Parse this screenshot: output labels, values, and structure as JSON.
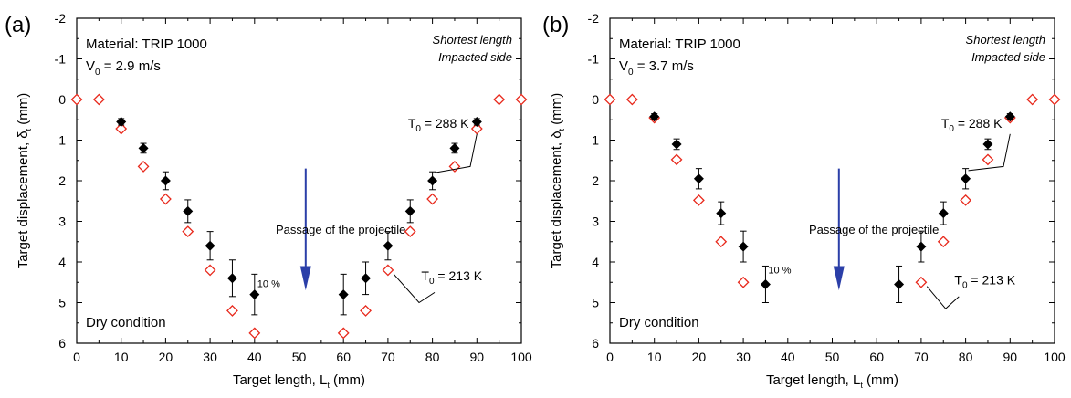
{
  "colors": {
    "plot_frame": "#000000",
    "filled_marker": "#000000",
    "open_marker": "#e8291c",
    "arrow": "#2b3fa8"
  },
  "chart_data": [
    {
      "type": "scatter",
      "panel_label": "(a)",
      "title": "",
      "xlabel": "Target length, L",
      "xlabel_sub": "t",
      "xlabel_units": "(mm)",
      "ylabel": "Target displacement, δ",
      "ylabel_sub": "t",
      "ylabel_units": "(mm)",
      "xlim": [
        0,
        100
      ],
      "ylim": [
        6,
        -2
      ],
      "y_inverted": true,
      "xticks": [
        "0",
        "10",
        "20",
        "30",
        "40",
        "50",
        "60",
        "70",
        "80",
        "90",
        "100"
      ],
      "yticks": [
        "-2",
        "-1",
        "0",
        "1",
        "2",
        "3",
        "4",
        "5",
        "6"
      ],
      "annotations": {
        "material": "Material: TRIP 1000",
        "velocity_main": "V",
        "velocity_sub": "0",
        "velocity_rest": " = 2.9 m/s",
        "corner1": "Shortest length",
        "corner2": "Impacted side",
        "dry": "Dry condition",
        "passage": "Passage of the projectile",
        "percent": "10 %",
        "t288_main": "T",
        "t288_sub": "0",
        "t288_rest": " = 288 K",
        "t213_main": "T",
        "t213_sub": "0",
        "t213_rest": " = 213 K"
      },
      "series": [
        {
          "marker": "filled-diamond",
          "label": "T0 = 288 K",
          "x": [
            10,
            15,
            20,
            25,
            30,
            35,
            40,
            60,
            65,
            70,
            75,
            80,
            85,
            90
          ],
          "y": [
            0.55,
            1.2,
            2.0,
            2.75,
            3.6,
            4.4,
            4.8,
            4.8,
            4.4,
            3.6,
            2.75,
            2.0,
            1.2,
            0.55
          ],
          "err": [
            0.08,
            0.12,
            0.22,
            0.28,
            0.35,
            0.45,
            0.5,
            0.5,
            0.4,
            0.35,
            0.28,
            0.22,
            0.12,
            0.08
          ]
        },
        {
          "marker": "open-diamond",
          "label": "T0 = 213 K",
          "x": [
            0,
            5,
            10,
            15,
            20,
            25,
            30,
            35,
            40,
            60,
            65,
            70,
            75,
            80,
            85,
            90,
            95,
            100
          ],
          "y": [
            0,
            0,
            0.72,
            1.65,
            2.45,
            3.25,
            4.2,
            5.2,
            5.75,
            5.75,
            5.2,
            4.2,
            3.25,
            2.45,
            1.65,
            0.72,
            0,
            0
          ]
        }
      ]
    },
    {
      "type": "scatter",
      "panel_label": "(b)",
      "title": "",
      "xlabel": "Target length, L",
      "xlabel_sub": "t",
      "xlabel_units": "(mm)",
      "ylabel": "Target displacement, δ",
      "ylabel_sub": "t",
      "ylabel_units": "(mm)",
      "xlim": [
        0,
        100
      ],
      "ylim": [
        6,
        -2
      ],
      "y_inverted": true,
      "xticks": [
        "0",
        "10",
        "20",
        "30",
        "40",
        "50",
        "60",
        "70",
        "80",
        "90",
        "100"
      ],
      "yticks": [
        "-2",
        "-1",
        "0",
        "1",
        "2",
        "3",
        "4",
        "5",
        "6"
      ],
      "annotations": {
        "material": "Material: TRIP 1000",
        "velocity_main": "V",
        "velocity_sub": "0",
        "velocity_rest": " = 3.7 m/s",
        "corner1": "Shortest length",
        "corner2": "Impacted side",
        "dry": "Dry condition",
        "passage": "Passage of the projectile",
        "percent": "10 %",
        "t288_main": "T",
        "t288_sub": "0",
        "t288_rest": " = 288 K",
        "t213_main": "T",
        "t213_sub": "0",
        "t213_rest": " = 213 K"
      },
      "series": [
        {
          "marker": "filled-diamond",
          "label": "T0 = 288 K",
          "x": [
            10,
            15,
            20,
            25,
            30,
            35,
            65,
            70,
            75,
            80,
            85,
            90
          ],
          "y": [
            0.42,
            1.1,
            1.95,
            2.8,
            3.62,
            4.55,
            4.55,
            3.62,
            2.8,
            1.95,
            1.1,
            0.42
          ],
          "err": [
            0.07,
            0.13,
            0.25,
            0.28,
            0.38,
            0.45,
            0.45,
            0.38,
            0.28,
            0.25,
            0.13,
            0.07
          ]
        },
        {
          "marker": "open-diamond",
          "label": "T0 = 213 K",
          "x": [
            0,
            5,
            10,
            15,
            20,
            25,
            30,
            70,
            75,
            80,
            85,
            90,
            95,
            100
          ],
          "y": [
            0,
            0,
            0.45,
            1.48,
            2.48,
            3.5,
            4.5,
            4.5,
            3.5,
            2.48,
            1.48,
            0.45,
            0,
            0
          ]
        }
      ]
    }
  ]
}
